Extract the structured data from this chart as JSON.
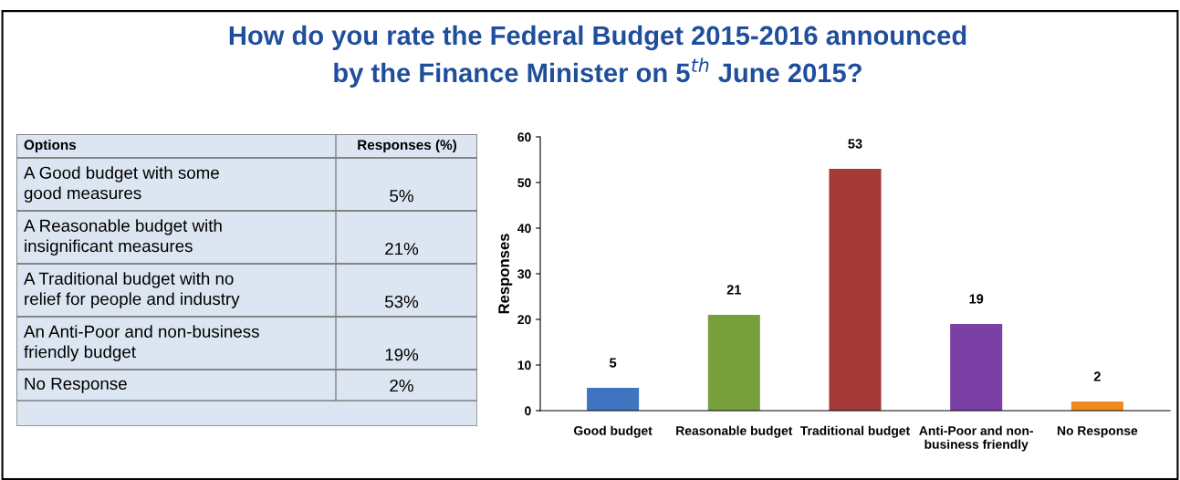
{
  "chart_data": [
    {
      "type": "other",
      "annotations": [
        "Options",
        "Responses (%)"
      ],
      "categories": [
        "A Good budget with some\ngood measures",
        "A Reasonable budget with\ninsignificant measures",
        "A Traditional budget with no\nrelief for people and industry",
        "An Anti-Poor and non-business\nfriendly budget",
        "No Response"
      ],
      "value_labels": [
        "5%",
        "21%",
        "53%",
        "19%",
        "2%"
      ]
    },
    {
      "type": "bar",
      "title": "How do you rate the Federal Budget 2015-2016 announced\nby the Finance Minister on 5$^{th}$ June 2015?",
      "categories": [
        "Good budget",
        "Reasonable budget",
        "Traditional budget",
        "Anti-Poor and non-\nbusiness friendly",
        "No Response"
      ],
      "values": [
        5,
        21,
        53,
        19,
        2
      ],
      "colors": [
        "#3f74c0",
        "#77a03d",
        "#a33a37",
        "#7c3fa5",
        "#f08a1e"
      ],
      "ylabel": "Responses",
      "ylim": [
        0,
        60
      ],
      "yticks": [
        0,
        10,
        20,
        30,
        40,
        50,
        60
      ],
      "data_labels": true,
      "grid": false
    }
  ]
}
